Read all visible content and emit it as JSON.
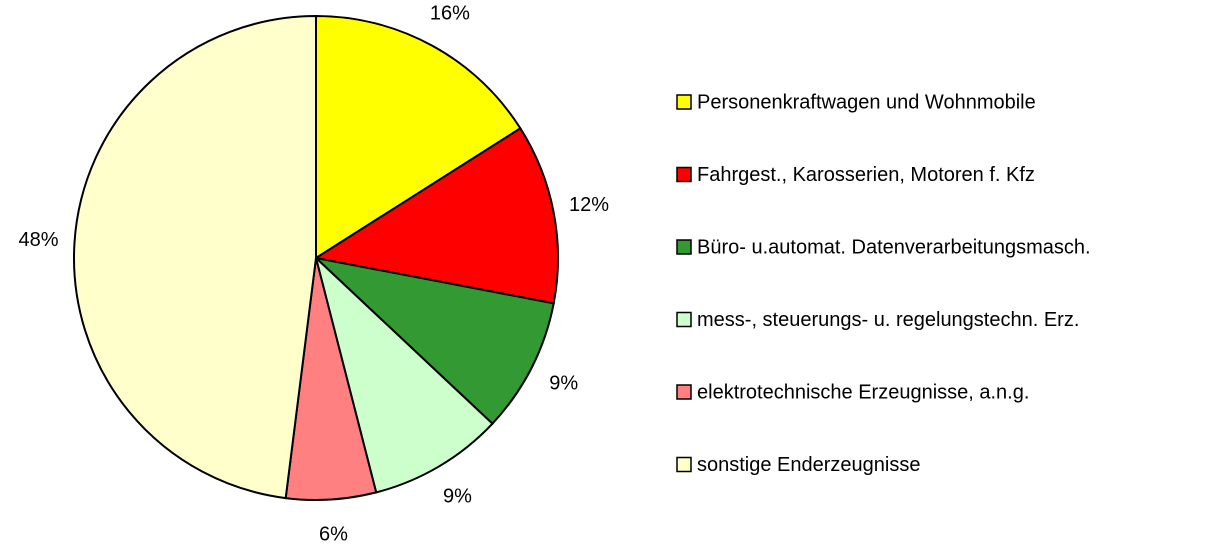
{
  "chart_data": {
    "type": "pie",
    "categories": [
      "Personenkraftwagen und Wohnmobile",
      "Fahrgest., Karosserien, Motoren f. Kfz",
      "Büro- u.automat. Datenverarbeitungsmasch.",
      "mess-, steuerungs- u. regelungstechn. Erz.",
      "elektrotechnische Erzeugnisse, a.n.g.",
      "sonstige Enderzeugnisse"
    ],
    "values": [
      16,
      12,
      9,
      9,
      6,
      48
    ],
    "value_labels": [
      "16%",
      "12%",
      "9%",
      "9%",
      "6%",
      "48%"
    ],
    "colors": [
      "#ffff00",
      "#ff0000",
      "#339933",
      "#ccffcc",
      "#ff8080",
      "#ffffcc"
    ],
    "legend": "right"
  }
}
